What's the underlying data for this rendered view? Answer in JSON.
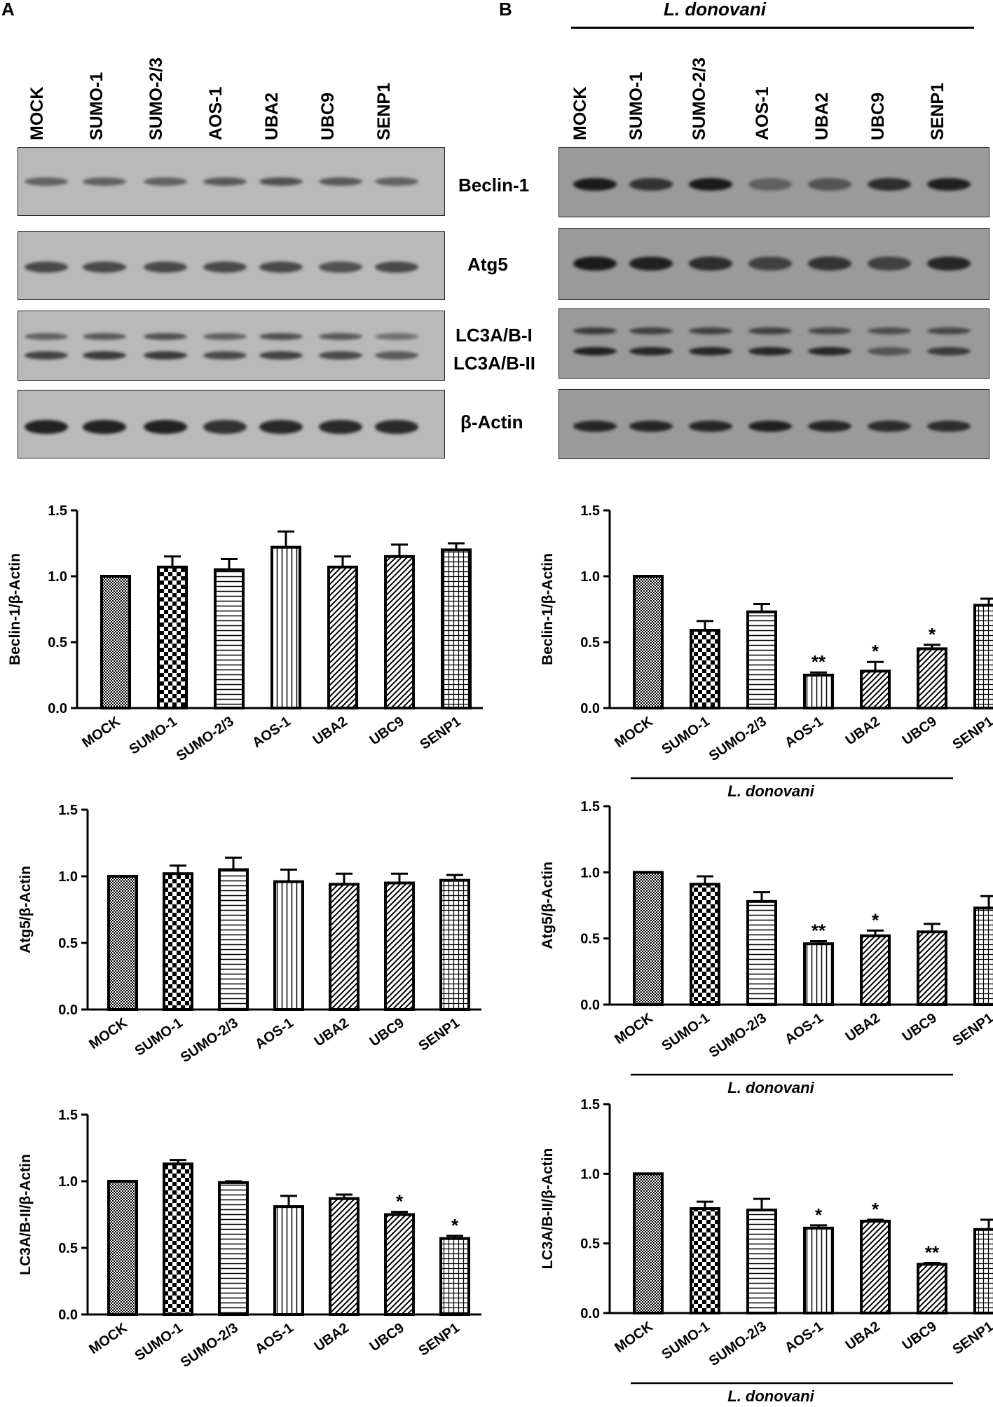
{
  "panel_a_letter": "A",
  "panel_b_letter": "B",
  "infection_label": "L. donovani",
  "lanes": [
    "MOCK",
    "SUMO-1",
    "SUMO-2/3",
    "AOS-1",
    "UBA2",
    "UBC9",
    "SENP1"
  ],
  "blot_labels": {
    "beclin": "Beclin-1",
    "atg5": "Atg5",
    "lc3_i": "LC3A/B-I",
    "lc3_ii": "LC3A/B-II",
    "actin": "β-Actin"
  },
  "colors": {
    "ink": "#000000",
    "bar_fill": "#ffffff",
    "blot_bg_a": "#b9b9b9",
    "blot_bg_b": "#9a9a9a",
    "band": "#1a1a1a"
  },
  "chart_data": [
    {
      "id": "a1",
      "type": "bar",
      "panel": "A",
      "ylabel": "Beclin-1/β-Actin",
      "ylim": [
        0,
        1.5
      ],
      "yticks": [
        "0.0",
        "0.5",
        "1.0",
        "1.5"
      ],
      "categories": [
        "MOCK",
        "SUMO-1",
        "SUMO-2/3",
        "AOS-1",
        "UBA2",
        "UBC9",
        "SENP1"
      ],
      "values": [
        1.0,
        1.07,
        1.05,
        1.22,
        1.07,
        1.15,
        1.2
      ],
      "errors": [
        0,
        0.08,
        0.08,
        0.12,
        0.08,
        0.09,
        0.05
      ],
      "significance": [
        "",
        "",
        "",
        "",
        "",
        "",
        ""
      ],
      "patterns": [
        "dots",
        "checker",
        "hlines",
        "vlines",
        "diag",
        "diag",
        "grid"
      ],
      "group_label": ""
    },
    {
      "id": "b1",
      "type": "bar",
      "panel": "B",
      "ylabel": "Beclin-1/β-Actin",
      "ylim": [
        0,
        1.5
      ],
      "yticks": [
        "0.0",
        "0.5",
        "1.0",
        "1.5"
      ],
      "categories": [
        "MOCK",
        "SUMO-1",
        "SUMO-2/3",
        "AOS-1",
        "UBA2",
        "UBC9",
        "SENP1"
      ],
      "values": [
        1.0,
        0.59,
        0.73,
        0.25,
        0.28,
        0.45,
        0.78
      ],
      "errors": [
        0,
        0.07,
        0.06,
        0.02,
        0.07,
        0.03,
        0.05
      ],
      "significance": [
        "",
        "",
        "",
        "**",
        "*",
        "*",
        ""
      ],
      "patterns": [
        "dots",
        "checker",
        "hlines",
        "vlines",
        "diag",
        "diag",
        "grid"
      ],
      "group_label": "L. donovani"
    },
    {
      "id": "a2",
      "type": "bar",
      "panel": "A",
      "ylabel": "Atg5/β-Actin",
      "ylim": [
        0,
        1.5
      ],
      "yticks": [
        "0.0",
        "0.5",
        "1.0",
        "1.5"
      ],
      "categories": [
        "MOCK",
        "SUMO-1",
        "SUMO-2/3",
        "AOS-1",
        "UBA2",
        "UBC9",
        "SENP1"
      ],
      "values": [
        1.0,
        1.02,
        1.05,
        0.96,
        0.94,
        0.95,
        0.97
      ],
      "errors": [
        0,
        0.06,
        0.09,
        0.09,
        0.08,
        0.07,
        0.04
      ],
      "significance": [
        "",
        "",
        "",
        "",
        "",
        "",
        ""
      ],
      "patterns": [
        "dots",
        "checker",
        "hlines",
        "vlines",
        "diag",
        "diag",
        "grid"
      ],
      "group_label": ""
    },
    {
      "id": "b2",
      "type": "bar",
      "panel": "B",
      "ylabel": "Atg5/β-Actin",
      "ylim": [
        0,
        1.5
      ],
      "yticks": [
        "0.0",
        "0.5",
        "1.0",
        "1.5"
      ],
      "categories": [
        "MOCK",
        "SUMO-1",
        "SUMO-2/3",
        "AOS-1",
        "UBA2",
        "UBC9",
        "SENP1"
      ],
      "values": [
        1.0,
        0.91,
        0.78,
        0.46,
        0.52,
        0.55,
        0.73
      ],
      "errors": [
        0,
        0.06,
        0.07,
        0.02,
        0.04,
        0.06,
        0.09
      ],
      "significance": [
        "",
        "",
        "",
        "**",
        "*",
        "",
        ""
      ],
      "patterns": [
        "dots",
        "checker",
        "hlines",
        "vlines",
        "diag",
        "diag",
        "grid"
      ],
      "group_label": "L. donovani"
    },
    {
      "id": "a3",
      "type": "bar",
      "panel": "A",
      "ylabel": "LC3A/B-II/β-Actin",
      "ylim": [
        0,
        1.5
      ],
      "yticks": [
        "0.0",
        "0.5",
        "1.0",
        "1.5"
      ],
      "categories": [
        "MOCK",
        "SUMO-1",
        "SUMO-2/3",
        "AOS-1",
        "UBA2",
        "UBC9",
        "SENP1"
      ],
      "values": [
        1.0,
        1.13,
        0.99,
        0.81,
        0.87,
        0.75,
        0.57
      ],
      "errors": [
        0,
        0.03,
        0.01,
        0.08,
        0.03,
        0.02,
        0.02
      ],
      "significance": [
        "",
        "",
        "",
        "",
        "",
        "*",
        "*"
      ],
      "patterns": [
        "dots",
        "checker",
        "hlines",
        "vlines",
        "diag",
        "diag",
        "grid"
      ],
      "group_label": ""
    },
    {
      "id": "b3",
      "type": "bar",
      "panel": "B",
      "ylabel": "LC3A/B-II/β-Actin",
      "ylim": [
        0,
        1.5
      ],
      "yticks": [
        "0.0",
        "0.5",
        "1.0",
        "1.5"
      ],
      "categories": [
        "MOCK",
        "SUMO-1",
        "SUMO-2/3",
        "AOS-1",
        "UBA2",
        "UBC9",
        "SENP1"
      ],
      "values": [
        1.0,
        0.75,
        0.74,
        0.61,
        0.66,
        0.35,
        0.6
      ],
      "errors": [
        0,
        0.05,
        0.08,
        0.02,
        0.01,
        0.01,
        0.07
      ],
      "significance": [
        "",
        "",
        "",
        "*",
        "*",
        "**",
        ""
      ],
      "patterns": [
        "dots",
        "checker",
        "hlines",
        "vlines",
        "diag",
        "diag",
        "grid"
      ],
      "group_label": "L. donovani"
    }
  ],
  "blots": {
    "a": {
      "beclin": [
        0.55,
        0.55,
        0.55,
        0.6,
        0.65,
        0.6,
        0.55
      ],
      "atg5": [
        0.7,
        0.7,
        0.7,
        0.7,
        0.7,
        0.65,
        0.7
      ],
      "lc3_i": [
        0.55,
        0.6,
        0.65,
        0.55,
        0.65,
        0.6,
        0.45
      ],
      "lc3_ii": [
        0.75,
        0.8,
        0.8,
        0.7,
        0.75,
        0.7,
        0.6
      ],
      "actin": [
        0.95,
        0.95,
        0.95,
        0.85,
        0.9,
        0.9,
        0.9
      ]
    },
    "b": {
      "beclin": [
        1.0,
        0.8,
        1.0,
        0.45,
        0.55,
        0.85,
        0.95
      ],
      "atg5": [
        1.0,
        0.95,
        0.85,
        0.7,
        0.8,
        0.7,
        0.9
      ],
      "lc3_i": [
        0.75,
        0.7,
        0.7,
        0.7,
        0.65,
        0.6,
        0.65
      ],
      "lc3_ii": [
        0.95,
        0.9,
        0.9,
        0.9,
        0.9,
        0.55,
        0.75
      ],
      "actin": [
        0.9,
        0.9,
        0.9,
        0.95,
        0.9,
        0.85,
        0.85
      ]
    }
  }
}
